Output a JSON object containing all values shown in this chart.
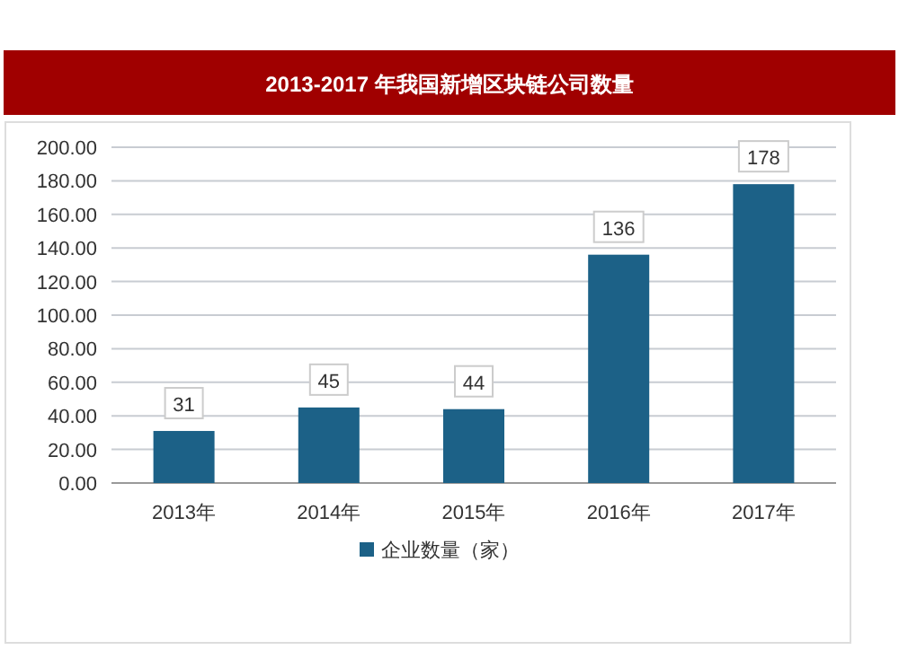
{
  "chart_data": {
    "type": "bar",
    "title": "2013-2017 年我国新增区块链公司数量",
    "categories": [
      "2013年",
      "2014年",
      "2015年",
      "2016年",
      "2017年"
    ],
    "series": [
      {
        "name": "企业数量（家）",
        "color": "#1c6187",
        "values": [
          31,
          45,
          44,
          136,
          178
        ]
      }
    ],
    "ylim": [
      0,
      200
    ],
    "yticks": [
      {
        "value": 0,
        "label": "0.00"
      },
      {
        "value": 20,
        "label": "20.00"
      },
      {
        "value": 40,
        "label": "40.00"
      },
      {
        "value": 60,
        "label": "60.00"
      },
      {
        "value": 80,
        "label": "80.00"
      },
      {
        "value": 100,
        "label": "100.00"
      },
      {
        "value": 120,
        "label": "120.00"
      },
      {
        "value": 140,
        "label": "140.00"
      },
      {
        "value": 160,
        "label": "160.00"
      },
      {
        "value": 180,
        "label": "180.00"
      },
      {
        "value": 200,
        "label": "200.00"
      }
    ],
    "grid": "y",
    "legend": "bottom",
    "data_labels": true
  }
}
